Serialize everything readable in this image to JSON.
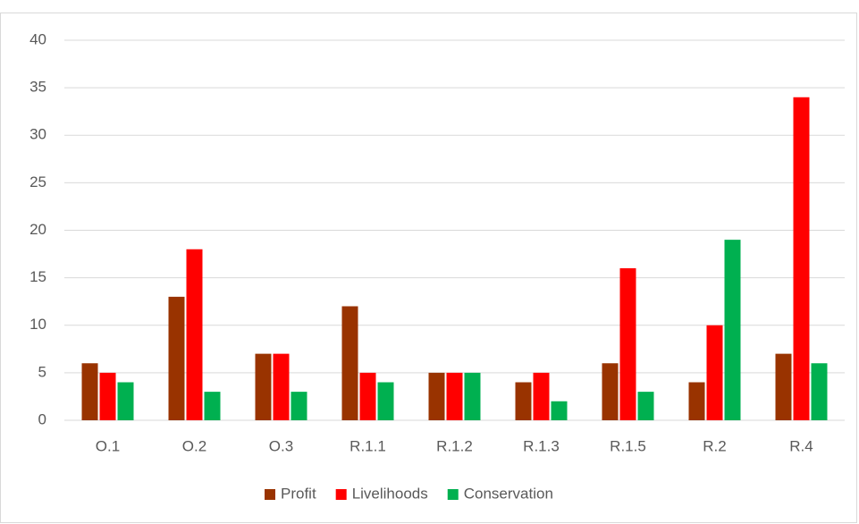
{
  "chart_data": {
    "type": "bar",
    "categories": [
      "O.1",
      "O.2",
      "O.3",
      "R.1.1",
      "R.1.2",
      "R.1.3",
      "R.1.5",
      "R.2",
      "R.4"
    ],
    "series": [
      {
        "name": "Profit",
        "color": "#993300",
        "values": [
          6,
          13,
          7,
          12,
          5,
          4,
          6,
          4,
          7
        ]
      },
      {
        "name": "Livelihoods",
        "color": "#ff0000",
        "values": [
          5,
          18,
          7,
          5,
          5,
          5,
          16,
          10,
          34
        ]
      },
      {
        "name": "Conservation",
        "color": "#00b050",
        "values": [
          4,
          3,
          3,
          4,
          5,
          2,
          3,
          19,
          6
        ]
      }
    ],
    "ylim": [
      0,
      40
    ],
    "yticks": [
      0,
      5,
      10,
      15,
      20,
      25,
      30,
      35,
      40
    ],
    "grid": true,
    "legend": "bottom"
  }
}
